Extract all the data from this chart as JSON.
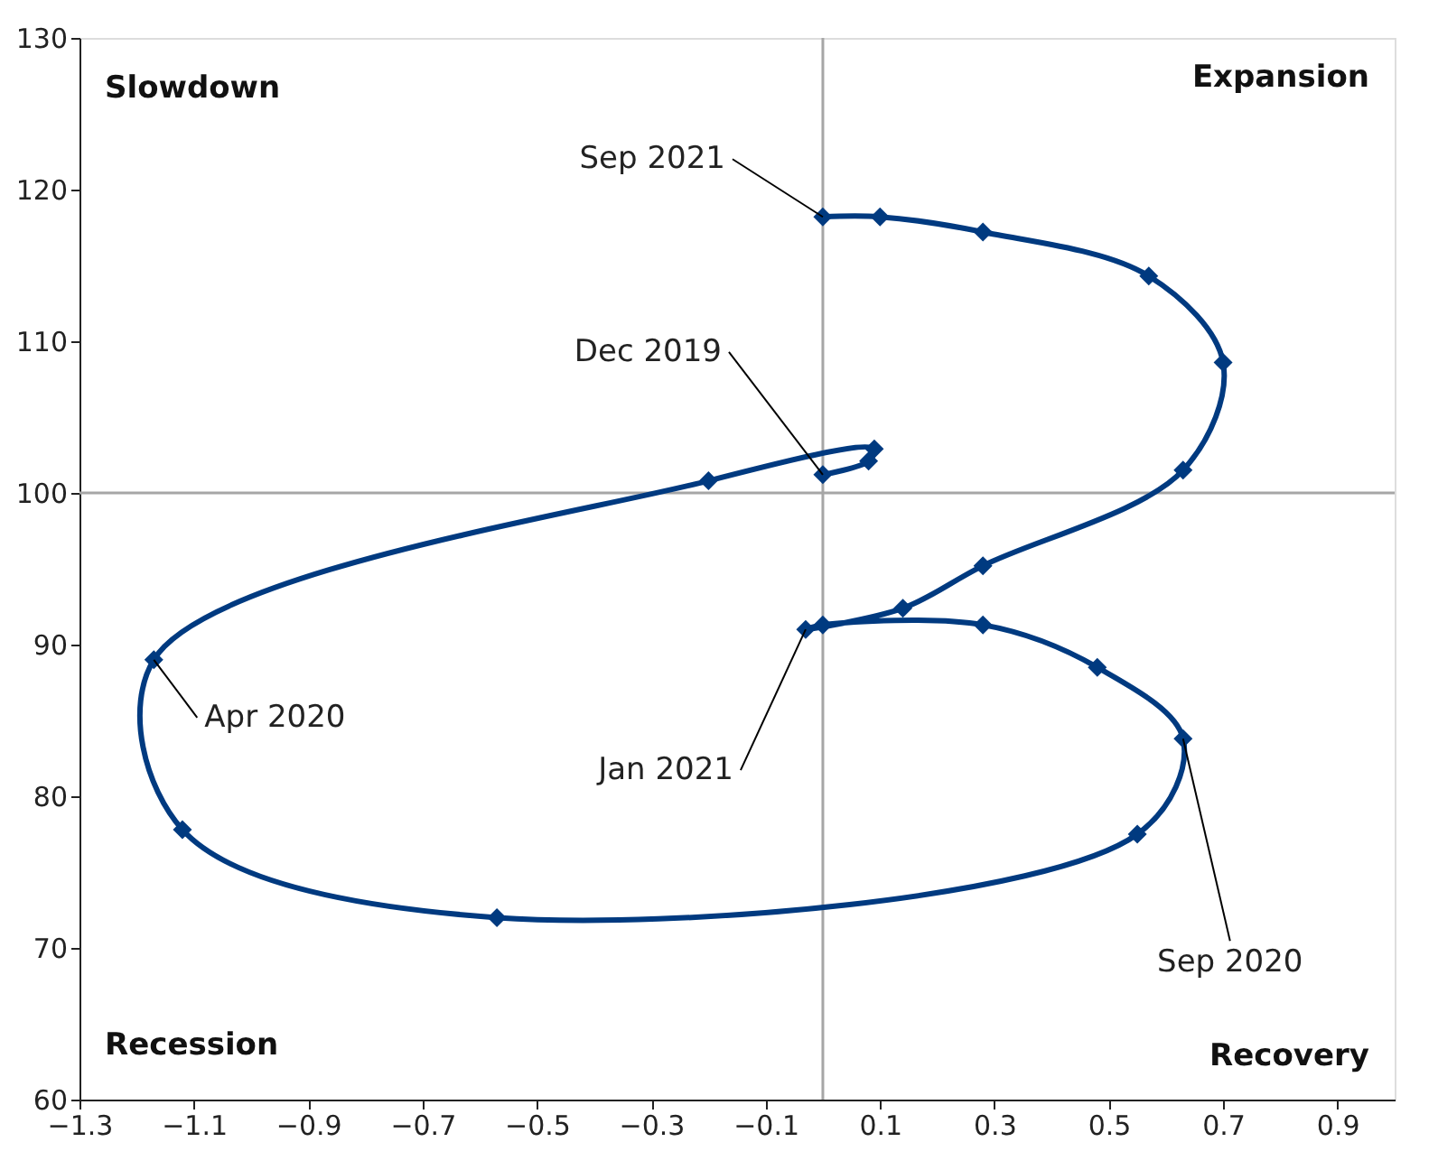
{
  "chart_data": {
    "type": "line",
    "x": [
      0.0,
      0.08,
      0.09,
      -0.2,
      -1.17,
      -1.12,
      -0.57,
      0.55,
      0.63,
      0.48,
      0.28,
      0.0,
      -0.03,
      0.14,
      0.28,
      0.63,
      0.7,
      0.57,
      0.28,
      0.1,
      0.0
    ],
    "series": [
      {
        "color": "#003a80",
        "values": [
          101.2,
          102.1,
          102.9,
          100.8,
          89.0,
          77.8,
          72.0,
          77.5,
          83.8,
          88.5,
          91.3,
          91.3,
          91.0,
          92.4,
          95.2,
          101.5,
          108.6,
          114.3,
          117.2,
          118.2,
          118.2
        ]
      }
    ],
    "xlim": [
      -1.3,
      1.0
    ],
    "xticks": [
      -1.3,
      -1.1,
      -0.9,
      -0.7,
      -0.5,
      -0.3,
      -0.1,
      0.1,
      0.3,
      0.5,
      0.7,
      0.9
    ],
    "ylim": [
      60,
      130
    ],
    "yticks": [
      60,
      70,
      80,
      90,
      100,
      110,
      120,
      130
    ],
    "ref_lines": [
      {
        "axis": "x",
        "value": 0,
        "color": "#a6a6a6"
      },
      {
        "axis": "y",
        "value": 100,
        "color": "#a6a6a6"
      }
    ],
    "annotations": [
      "Slowdown",
      "Expansion",
      "Recession",
      "Recovery",
      {
        "text": "Sep 2021",
        "x": 0.0,
        "y": 118.2
      },
      {
        "text": "Dec 2019",
        "x": 0.0,
        "y": 101.2
      },
      {
        "text": "Apr 2020",
        "x": -1.17,
        "y": 89.0
      },
      {
        "text": "Jan 2021",
        "x": -0.03,
        "y": 91.0
      },
      {
        "text": "Sep 2020",
        "x": 0.63,
        "y": 83.8
      }
    ],
    "marker": "diamond",
    "line_style": "solid",
    "grid": false
  }
}
